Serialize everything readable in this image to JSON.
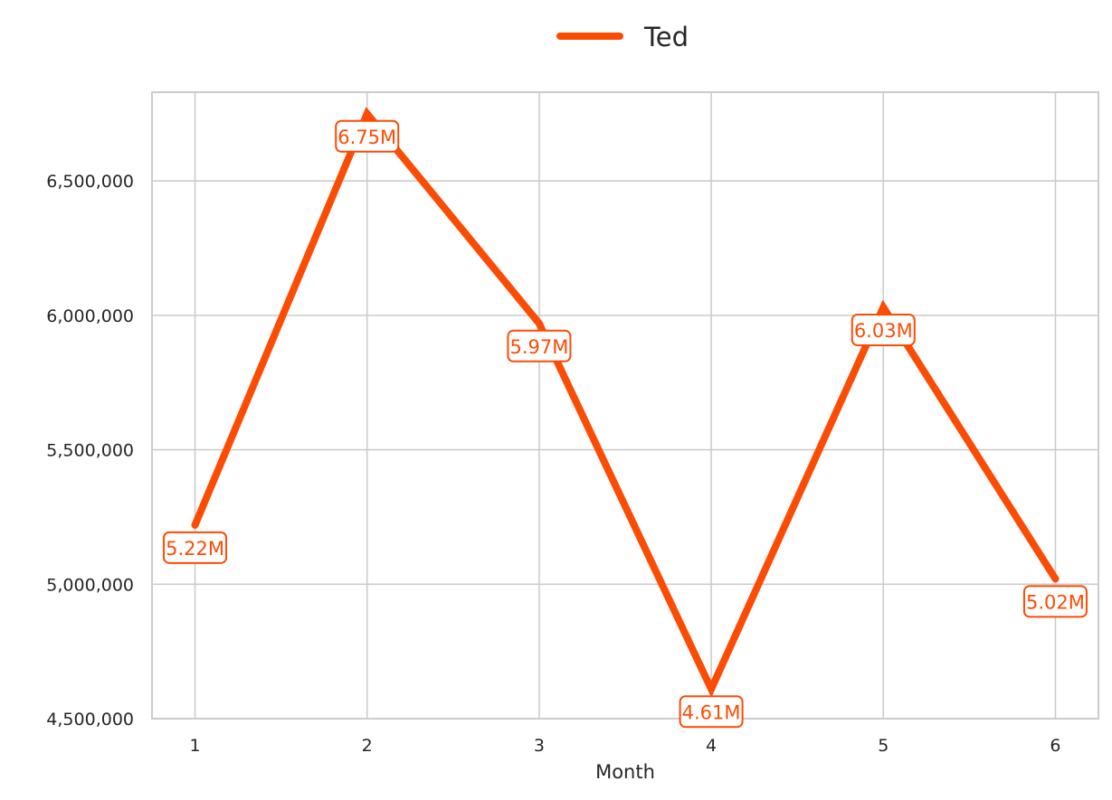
{
  "chart_data": {
    "type": "line",
    "title": "",
    "xlabel": "Month",
    "ylabel": "",
    "x": [
      1,
      2,
      3,
      4,
      5,
      6
    ],
    "x_tick_labels": [
      "1",
      "2",
      "3",
      "4",
      "5",
      "6"
    ],
    "y_ticks": [
      4500000,
      5000000,
      5500000,
      6000000,
      6500000
    ],
    "y_tick_labels": [
      "4,500,000",
      "5,000,000",
      "5,500,000",
      "6,000,000",
      "6,500,000"
    ],
    "xlim": [
      0.75,
      6.25
    ],
    "ylim": [
      4500000,
      6830000
    ],
    "grid": true,
    "legend_position": "top-center",
    "series": [
      {
        "name": "Ted",
        "color": "#fc4c04",
        "values": [
          5220000,
          6750000,
          5970000,
          4610000,
          6030000,
          5020000
        ],
        "data_labels": [
          "5.22M",
          "6.75M",
          "5.97M",
          "4.61M",
          "6.03M",
          "5.02M"
        ],
        "label_placement": [
          "below",
          "below",
          "below",
          "below",
          "below",
          "below"
        ]
      }
    ]
  }
}
